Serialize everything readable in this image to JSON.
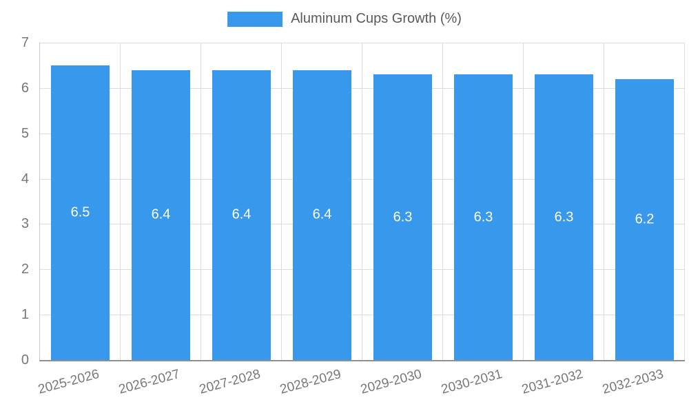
{
  "chart_data": {
    "type": "bar",
    "title": "Aluminum Cups Growth (%)",
    "categories": [
      "2025-2026",
      "2026-2027",
      "2027-2028",
      "2028-2029",
      "2029-2030",
      "2030-2031",
      "2031-2032",
      "2032-2033"
    ],
    "values": [
      6.5,
      6.4,
      6.4,
      6.4,
      6.3,
      6.3,
      6.3,
      6.2
    ],
    "value_labels": [
      "6.5",
      "6.4",
      "6.4",
      "6.4",
      "6.3",
      "6.3",
      "6.3",
      "6.2"
    ],
    "ylim": [
      0,
      7
    ],
    "ytick_step": 1,
    "ytick_labels": [
      "0",
      "1",
      "2",
      "3",
      "4",
      "5",
      "6",
      "7"
    ],
    "grid": true,
    "legend_position": "top",
    "bar_color": "#3899ec",
    "value_label_color": "#ffffff",
    "axis_text_color": "#777777",
    "gridline_color": "#dcdcdc"
  }
}
